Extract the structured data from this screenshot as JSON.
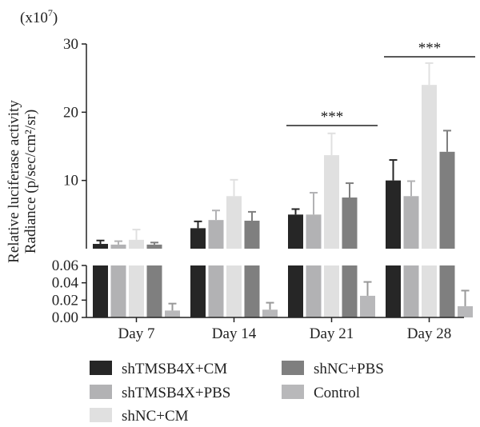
{
  "chart_data": {
    "type": "bar",
    "scale_label": "(x10",
    "scale_exp": "7",
    "scale_close": ")",
    "ylabel_line1": "Relative luciferase activity",
    "ylabel_line2": "Radiance (p/sec/cm²/sr)",
    "categories": [
      "Day 7",
      "Day 14",
      "Day 21",
      "Day 28"
    ],
    "upper_axis": {
      "ylim": [
        0,
        30
      ],
      "ticks": [
        "10",
        "20",
        "30"
      ]
    },
    "lower_axis": {
      "ylim": [
        0,
        0.06
      ],
      "ticks": [
        "0.00",
        "0.02",
        "0.04",
        "0.06"
      ]
    },
    "series": [
      {
        "name": "shTMSB4X+CM",
        "color": "#262626",
        "values": [
          0.7,
          3.0,
          5.0,
          10.0
        ],
        "errors": [
          0.5,
          1.0,
          0.8,
          3.0
        ]
      },
      {
        "name": "shTMSB4X+PBS",
        "color": "#b2b2b4",
        "values": [
          0.6,
          4.2,
          5.0,
          7.7
        ],
        "errors": [
          0.5,
          1.4,
          3.2,
          2.2
        ]
      },
      {
        "name": "shNC+CM",
        "color": "#e0e0e0",
        "values": [
          1.3,
          7.7,
          13.7,
          24.0
        ],
        "errors": [
          1.5,
          2.4,
          3.2,
          3.2
        ]
      },
      {
        "name": "shNC+PBS",
        "color": "#7f7f7f",
        "values": [
          0.6,
          4.1,
          7.5,
          14.2
        ],
        "errors": [
          0.3,
          1.3,
          2.1,
          3.1
        ]
      },
      {
        "name": "Control",
        "color": "#b8b8ba",
        "values": [
          0.008,
          0.009,
          0.025,
          0.013
        ],
        "errors": [
          0.008,
          0.008,
          0.016,
          0.018
        ]
      }
    ],
    "significance": [
      {
        "category": "Day 21",
        "label": "***"
      },
      {
        "category": "Day 28",
        "label": "***"
      }
    ],
    "legend_position": "bottom"
  }
}
